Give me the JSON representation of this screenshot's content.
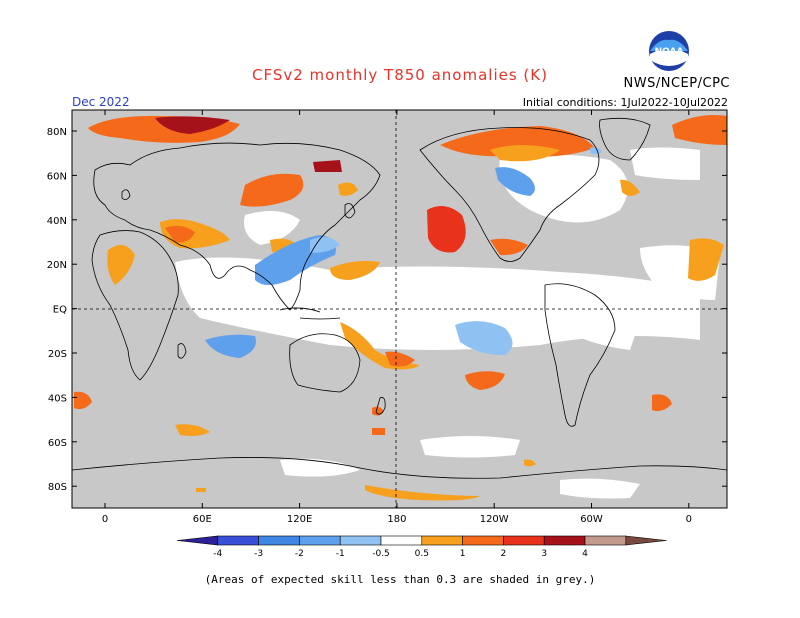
{
  "header": {
    "title": "CFSv2 monthly T850 anomalies (K)",
    "agency": "NWS/NCEP/CPC",
    "valid_month": "Dec 2022",
    "initial_conditions": "Initial conditions: 1Jul2022-10Jul2022",
    "logo_text": "NOAA"
  },
  "map": {
    "lat_labels": [
      "80N",
      "60N",
      "40N",
      "20N",
      "EQ",
      "20S",
      "40S",
      "60S",
      "80S"
    ],
    "lon_labels": [
      "0",
      "60E",
      "120E",
      "180",
      "120W",
      "60W",
      "0"
    ],
    "grey_color": "#c8c8c8",
    "ocean_color": "#ffffff"
  },
  "colorbar": {
    "tick_labels": [
      "-4",
      "-3",
      "-2",
      "-1",
      "-0.5",
      "0.5",
      "1",
      "2",
      "3",
      "4"
    ],
    "colors": [
      "#2b1f9a",
      "#3a4fd8",
      "#3f86e4",
      "#5fa0ec",
      "#8fc2f2",
      "#ffffff",
      "#f7a01e",
      "#f56a1a",
      "#e8321c",
      "#a6121a",
      "#c29a8e",
      "#7a4a40"
    ]
  },
  "footnote": "(Areas of expected skill less than 0.3 are shaded in grey.)"
}
